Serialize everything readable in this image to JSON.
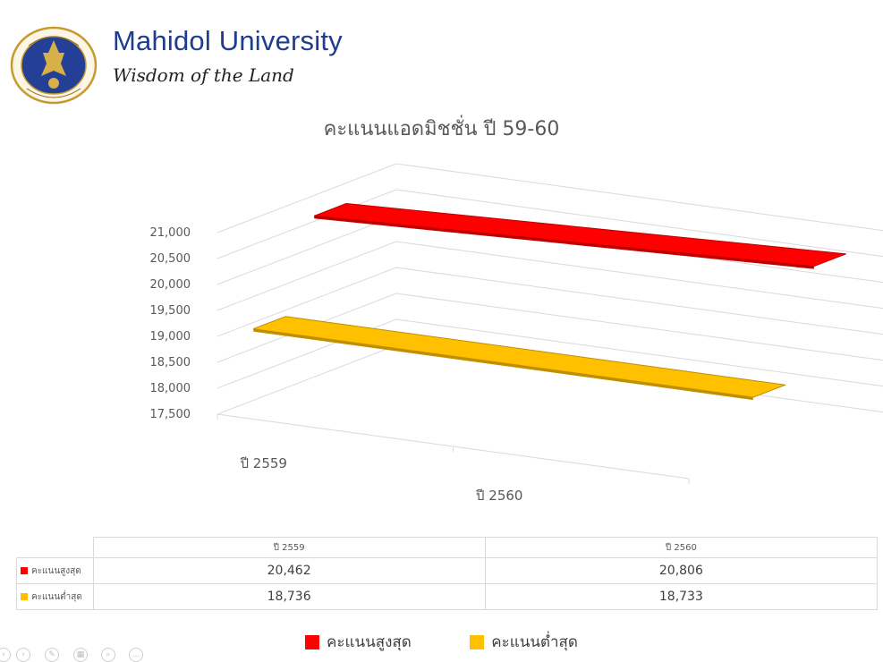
{
  "brand": {
    "name": "Mahidol University",
    "tagline": "Wisdom of the Land"
  },
  "colors": {
    "max_series": "#ff0000",
    "min_series": "#ffc000",
    "brand_blue": "#1f3d8f",
    "gold": "#c59a2e"
  },
  "chart_data": {
    "type": "bar",
    "subtype": "3d-line-ribbon",
    "title": "คะแนนแอดมิชชั่น ปี 59-60",
    "categories": [
      "ปี 2559",
      "ปี 2560"
    ],
    "series": [
      {
        "name": "คะแนนสูงสุด",
        "values": [
          20462,
          20806
        ],
        "color": "#ff0000"
      },
      {
        "name": "คะแนนต่ำสุด",
        "values": [
          18736,
          18733
        ],
        "color": "#ffc000"
      }
    ],
    "ylim": [
      17500,
      21000
    ],
    "yticks": [
      "21,000",
      "20,500",
      "20,000",
      "19,500",
      "19,000",
      "18,500",
      "18,000",
      "17,500"
    ],
    "grid": true,
    "legend_position": "bottom"
  },
  "table": {
    "columns": [
      "ปี 2559",
      "ปี 2560"
    ],
    "rows": [
      {
        "label": "คะแนนสูงสุด",
        "values": [
          "20,462",
          "20,806"
        ]
      },
      {
        "label": "คะแนนต่ำสุด",
        "values": [
          "18,736",
          "18,733"
        ]
      }
    ]
  },
  "toolbar": {
    "icons": [
      "previous-slide-icon",
      "next-slide-icon",
      "pen-icon",
      "slides-icon",
      "zoom-icon",
      "more-icon"
    ]
  }
}
